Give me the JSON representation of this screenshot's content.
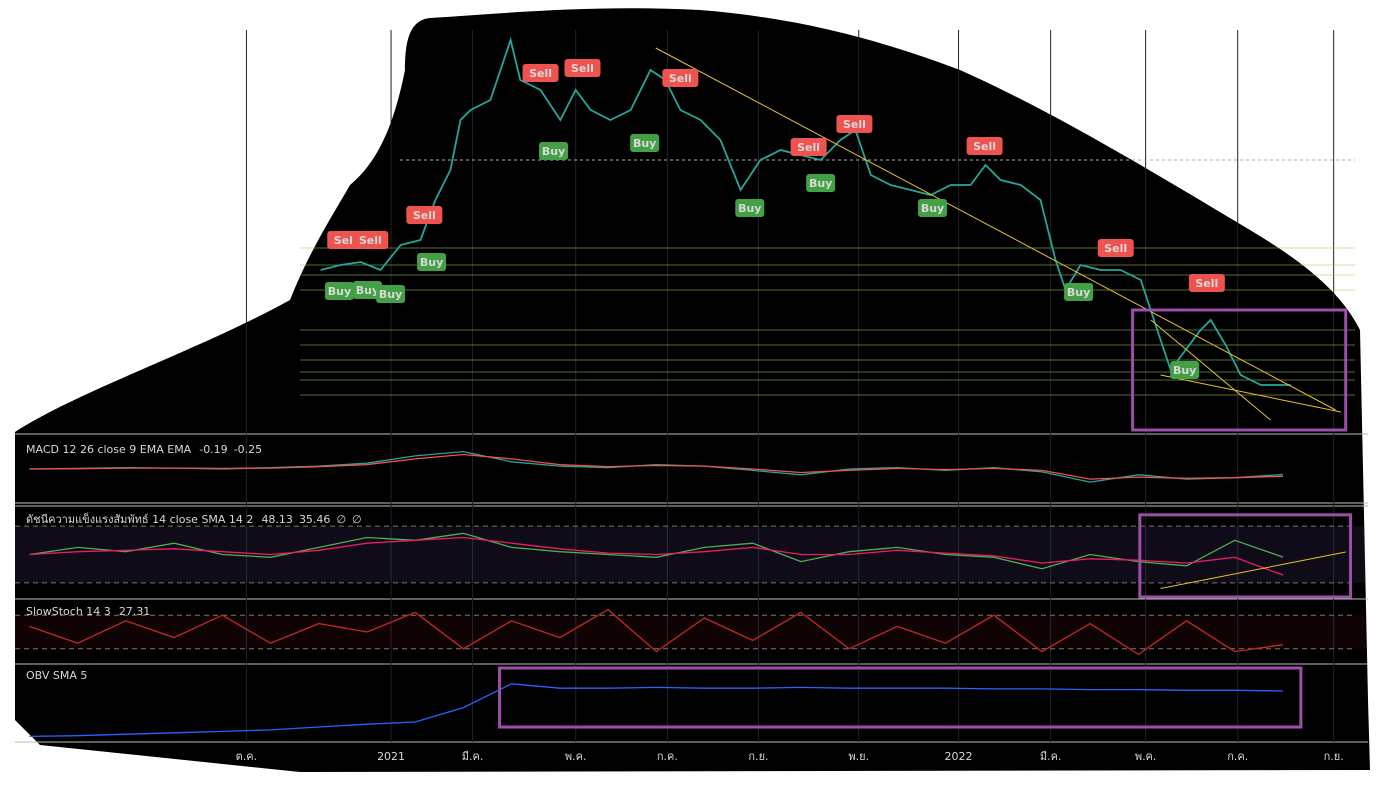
{
  "chart_data": [
    {
      "type": "line",
      "xlim": [
        -4.8,
        23.2
      ],
      "ylim": [
        0,
        100
      ],
      "x": [
        1.54,
        1.95,
        2.37,
        2.78,
        3.2,
        3.61,
        3.92,
        4.23,
        4.44,
        4.65,
        5.06,
        5.48,
        5.68,
        6.1,
        6.51,
        6.83,
        7.14,
        7.55,
        7.97,
        8.38,
        8.69,
        9.0,
        9.42,
        9.83,
        10.25,
        10.66,
        11.08,
        11.49,
        11.91,
        12.32,
        12.63,
        12.95,
        13.36,
        13.78,
        14.19,
        14.61,
        15.02,
        15.33,
        15.64,
        16.06,
        16.47,
        16.78,
        16.99,
        17.3,
        17.72,
        18.13,
        18.55,
        18.96,
        19.17,
        19.48,
        19.79,
        20.0,
        20.31,
        20.62,
        21.04,
        21.45,
        21.66
      ],
      "series": [
        {
          "color": "#26a69a",
          "values": [
            40,
            41.25,
            42,
            40,
            46.25,
            47.5,
            57.5,
            65,
            77.5,
            80,
            82.5,
            97.5,
            87.5,
            85,
            77.5,
            85,
            80,
            77.5,
            80,
            90,
            87.5,
            80,
            77.5,
            72.5,
            60,
            67.5,
            70,
            68.75,
            67.5,
            72.5,
            75,
            63.75,
            61.25,
            60,
            58.75,
            61.25,
            61.25,
            66.25,
            62.5,
            61.25,
            57.5,
            42.5,
            35,
            41.25,
            40,
            40,
            37.5,
            22.5,
            15,
            20,
            25,
            27.5,
            21.25,
            13.75,
            11.25,
            11.25,
            11.25
          ]
        }
      ],
      "levels": [
        45.5,
        41.25,
        38.75,
        35,
        25,
        21.25,
        17.5,
        14.5,
        12.5,
        8.75
      ],
      "dashed_level": 67.5,
      "signals": [
        {
          "label": "Sell",
          "x": 6.1,
          "y": 89.25
        },
        {
          "label": "Sell",
          "x": 6.97,
          "y": 90.5
        },
        {
          "label": "Sell",
          "x": 9.0,
          "y": 88
        },
        {
          "label": "Sell",
          "x": 2.05,
          "y": 47.5
        },
        {
          "label": "Sell",
          "x": 2.57,
          "y": 47.5
        },
        {
          "label": "Sell",
          "x": 3.69,
          "y": 53.75
        },
        {
          "label": "Sell",
          "x": 11.66,
          "y": 70.75
        },
        {
          "label": "Sell",
          "x": 12.61,
          "y": 76.5
        },
        {
          "label": "Sell",
          "x": 15.31,
          "y": 71
        },
        {
          "label": "Sell",
          "x": 18.03,
          "y": 45.5
        },
        {
          "label": "Sell",
          "x": 19.92,
          "y": 36.75
        },
        {
          "label": "Buy",
          "x": 1.93,
          "y": 34.75
        },
        {
          "label": "Buy",
          "x": 2.51,
          "y": 35
        },
        {
          "label": "Buy",
          "x": 2.99,
          "y": 34
        },
        {
          "label": "Buy",
          "x": 3.84,
          "y": 42
        },
        {
          "label": "Buy",
          "x": 6.37,
          "y": 69.75
        },
        {
          "label": "Buy",
          "x": 8.26,
          "y": 71.75
        },
        {
          "label": "Buy",
          "x": 10.44,
          "y": 55.5
        },
        {
          "label": "Buy",
          "x": 11.91,
          "y": 61.75
        },
        {
          "label": "Buy",
          "x": 14.23,
          "y": 55.5
        },
        {
          "label": "Buy",
          "x": 17.26,
          "y": 34.5
        },
        {
          "label": "Buy",
          "x": 19.46,
          "y": 15
        }
      ],
      "trendlines": [
        {
          "x": [
            8.49,
            22.59
          ],
          "y": [
            95.5,
            5
          ]
        },
        {
          "x": [
            18.76,
            21.24
          ],
          "y": [
            27.5,
            2.5
          ]
        },
        {
          "x": [
            18.96,
            22.7
          ],
          "y": [
            13.75,
            4.5
          ]
        }
      ],
      "highlight": {
        "x": [
          18.38,
          22.8
        ],
        "y": [
          0,
          30
        ]
      }
    },
    {
      "type": "line",
      "title": "MACD 12 26 close 9 EMA EMA",
      "xlim": [
        -4.8,
        23.2
      ],
      "ylim": [
        -1,
        1
      ],
      "x": [
        -4.5,
        -3.5,
        -2.5,
        -1.5,
        -0.5,
        0.5,
        1.5,
        2.5,
        3.5,
        4.5,
        5.5,
        6.5,
        7.5,
        8.5,
        9.5,
        10.5,
        11.5,
        12.5,
        13.5,
        14.5,
        15.5,
        16.5,
        17.5,
        18.5,
        19.5,
        20.5,
        21.5
      ],
      "series": [
        {
          "color": "#26a69a",
          "values": [
            0,
            0.02,
            0.05,
            0.03,
            0,
            0.05,
            0.1,
            0.2,
            0.45,
            0.6,
            0.25,
            0.1,
            0.05,
            0.15,
            0.1,
            -0.05,
            -0.2,
            0,
            0.05,
            -0.05,
            0.05,
            -0.1,
            -0.45,
            -0.2,
            -0.35,
            -0.3,
            -0.19
          ]
        },
        {
          "color": "#ef5350",
          "values": [
            0,
            0.01,
            0.03,
            0.03,
            0.02,
            0.03,
            0.08,
            0.15,
            0.35,
            0.5,
            0.35,
            0.15,
            0.08,
            0.12,
            0.1,
            0,
            -0.12,
            -0.05,
            0.02,
            -0.02,
            0.02,
            -0.05,
            -0.35,
            -0.28,
            -0.32,
            -0.3,
            -0.25
          ]
        }
      ]
    },
    {
      "type": "line",
      "title": "ดัชนีความแข็งแรงสัมพัทธ์ 14 close SMA 14 2",
      "extra_labels": [
        "∅",
        "∅"
      ],
      "xlim": [
        -4.8,
        23.2
      ],
      "ylim": [
        20,
        80
      ],
      "levels": [
        70,
        30
      ],
      "x": [
        -4.5,
        -3.5,
        -2.5,
        -1.5,
        -0.5,
        0.5,
        1.5,
        2.5,
        3.5,
        4.5,
        5.5,
        6.5,
        7.5,
        8.5,
        9.5,
        10.5,
        11.5,
        12.5,
        13.5,
        14.5,
        15.5,
        16.5,
        17.5,
        18.5,
        19.5,
        20.5,
        21.5
      ],
      "series": [
        {
          "color": "#4caf50",
          "values": [
            50,
            55,
            52,
            58,
            50,
            48,
            55,
            62,
            60,
            65,
            55,
            52,
            50,
            48,
            55,
            58,
            45,
            52,
            55,
            50,
            48,
            40,
            50,
            45,
            42,
            60,
            48.13
          ]
        },
        {
          "color": "#e91e63",
          "values": [
            50,
            52,
            53,
            54,
            52,
            50,
            53,
            58,
            60,
            62,
            58,
            54,
            51,
            50,
            52,
            55,
            50,
            50,
            53,
            51,
            49,
            44,
            47,
            46,
            44,
            48,
            35.46
          ]
        }
      ],
      "trendlines": [
        {
          "x": [
            18.96,
            22.8
          ],
          "y": [
            26,
            51.8
          ]
        }
      ],
      "highlight": {
        "x": [
          18.53,
          22.9
        ],
        "y": [
          20,
          78
        ]
      }
    },
    {
      "type": "line",
      "title": "SlowStoch 14 3",
      "xlim": [
        -4.8,
        23.2
      ],
      "ylim": [
        0,
        100
      ],
      "levels": [
        80,
        20
      ],
      "x": [
        -4.5,
        -3.5,
        -2.5,
        -1.5,
        -0.5,
        0.5,
        1.5,
        2.5,
        3.5,
        4.5,
        5.5,
        6.5,
        7.5,
        8.5,
        9.5,
        10.5,
        11.5,
        12.5,
        13.5,
        14.5,
        15.5,
        16.5,
        17.5,
        18.5,
        19.5,
        20.5,
        21.5
      ],
      "series": [
        {
          "color": "#c62828",
          "values": [
            60,
            30,
            70,
            40,
            80,
            30,
            65,
            50,
            85,
            20,
            70,
            40,
            90,
            15,
            75,
            35,
            85,
            20,
            60,
            30,
            80,
            15,
            65,
            10,
            70,
            15,
            27.31
          ]
        }
      ]
    },
    {
      "type": "line",
      "title": "OBV SMA 5",
      "xlim": [
        -4.8,
        23.2
      ],
      "ylim": [
        0,
        100
      ],
      "x": [
        -4.5,
        -3.5,
        -2.5,
        -1.5,
        -0.5,
        0.5,
        1.5,
        2.5,
        3.5,
        4.5,
        5.5,
        6.5,
        7.5,
        8.5,
        9.5,
        10.5,
        11.5,
        12.5,
        13.5,
        14.5,
        15.5,
        16.5,
        17.5,
        18.5,
        19.5,
        20.5,
        21.5
      ],
      "series": [
        {
          "color": "#2962ff",
          "values": [
            5,
            6,
            8,
            10,
            12,
            14,
            18,
            22,
            25,
            45,
            78,
            72,
            72,
            73,
            72,
            72,
            73,
            72,
            72,
            72,
            71,
            71,
            70,
            70,
            69,
            69,
            68
          ]
        }
      ],
      "highlight": {
        "x": [
          5.25,
          21.87
        ],
        "y": [
          18,
          100
        ]
      },
      "xticks": [
        {
          "value": 0,
          "label": "ต.ค."
        },
        {
          "value": 3.0,
          "label": "2021"
        },
        {
          "value": 4.69,
          "label": "มี.ค."
        },
        {
          "value": 6.83,
          "label": "พ.ค."
        },
        {
          "value": 8.73,
          "label": "ก.ค."
        },
        {
          "value": 10.62,
          "label": "ก.ย."
        },
        {
          "value": 12.7,
          "label": "พ.ย."
        },
        {
          "value": 14.77,
          "label": "2022"
        },
        {
          "value": 16.68,
          "label": "มี.ค."
        },
        {
          "value": 18.65,
          "label": "พ.ค."
        },
        {
          "value": 20.56,
          "label": "ก.ค."
        },
        {
          "value": 22.55,
          "label": "ก.ย."
        }
      ]
    }
  ]
}
